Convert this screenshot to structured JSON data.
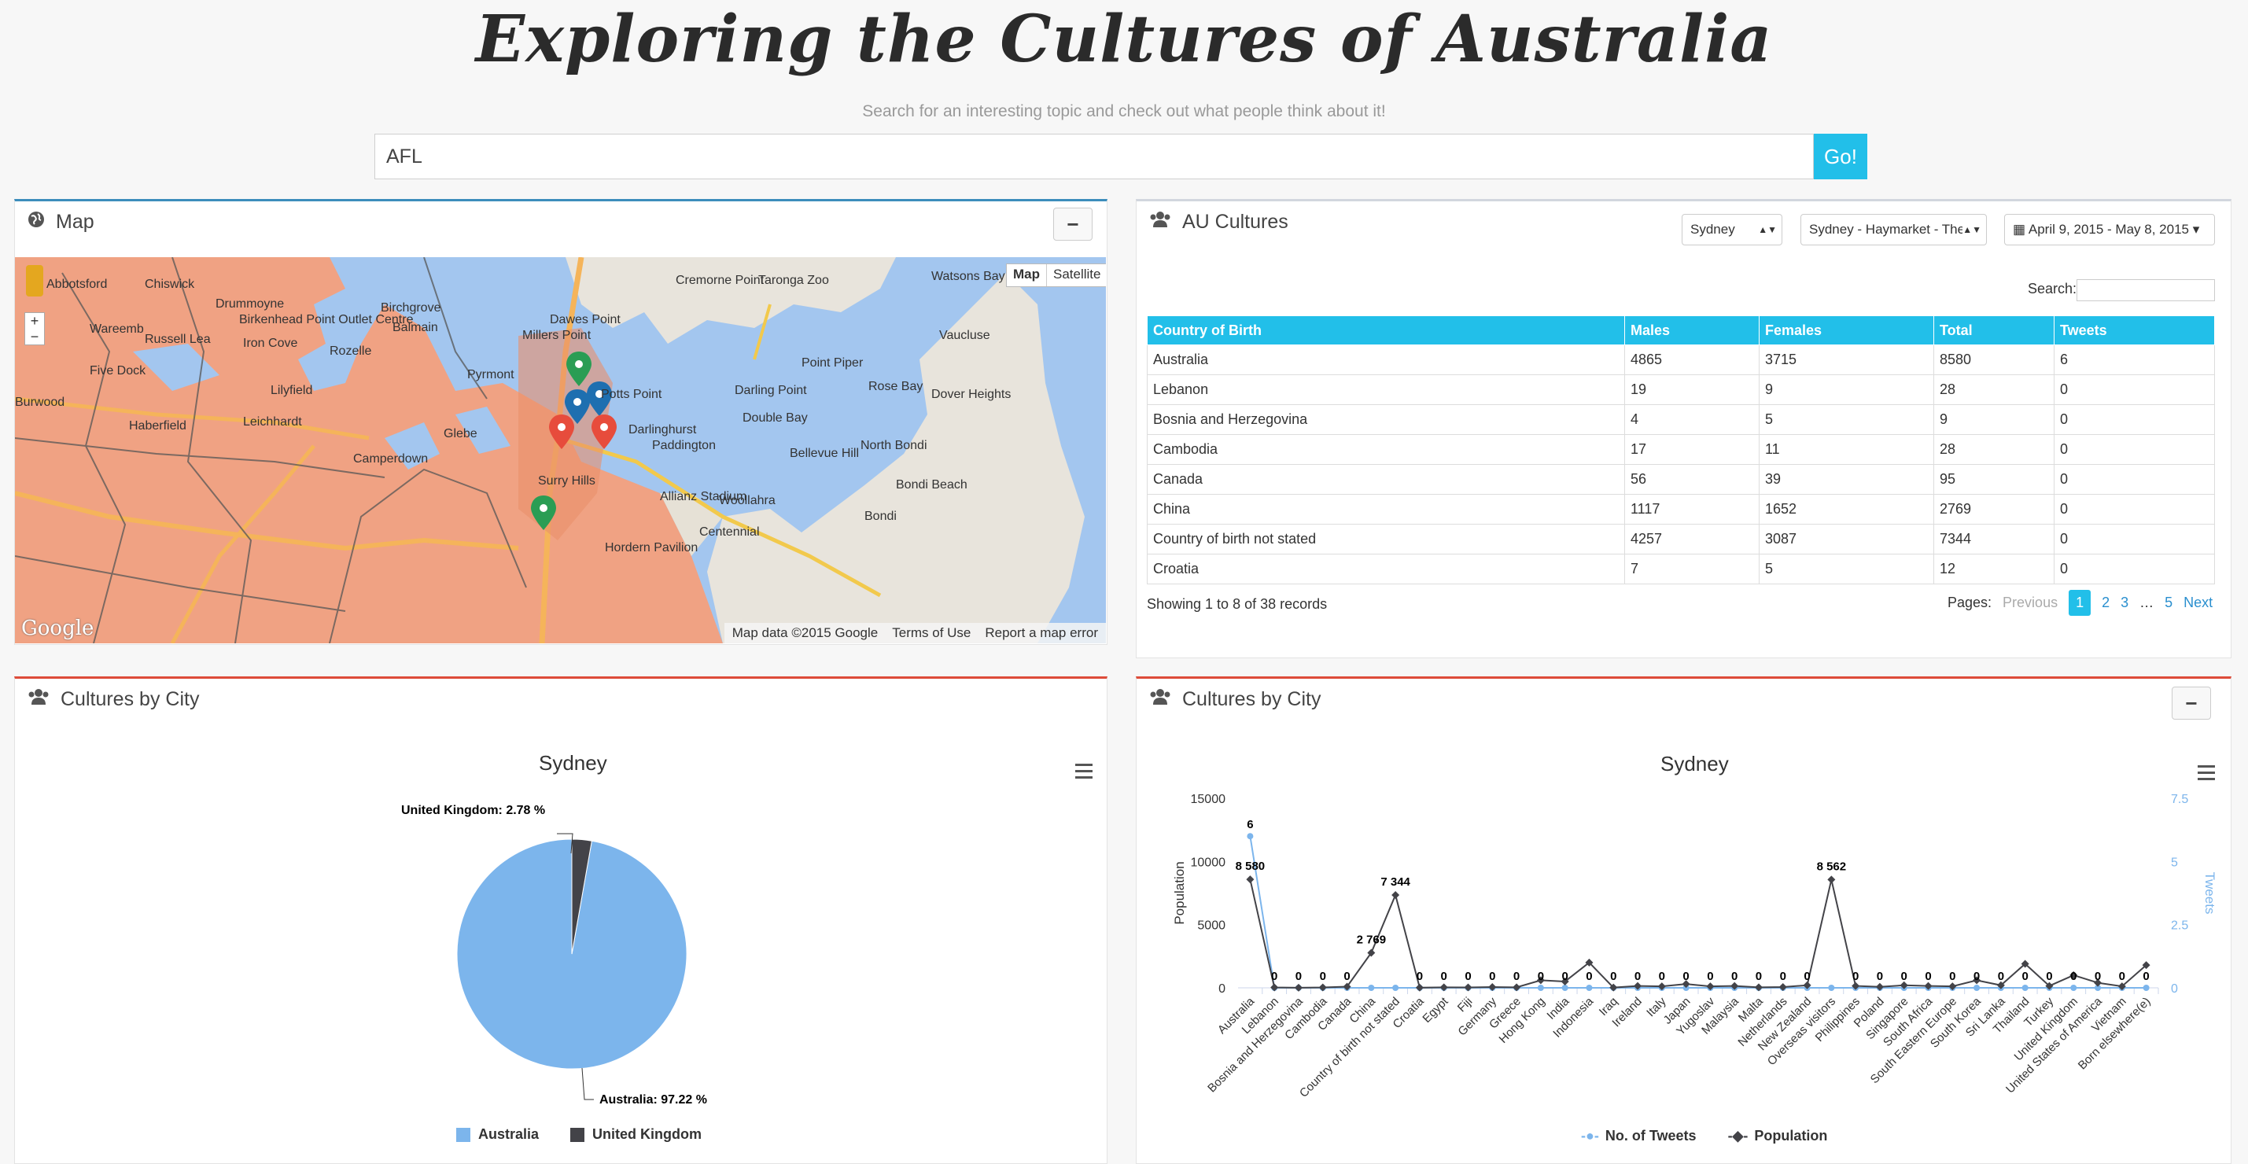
{
  "header": {
    "title": "Exploring the Cultures of Australia",
    "subtitle": "Search for an interesting topic and check out what people think about it!",
    "search_value": "AFL",
    "go_label": "Go!"
  },
  "map_panel": {
    "title": "Map",
    "collapse_label": "−",
    "toggle_map": "Map",
    "toggle_satellite": "Satellite",
    "attribution": "Map data ©2015 Google",
    "terms": "Terms of Use",
    "report": "Report a map error",
    "logo": "Google",
    "places": [
      "Abbotsford",
      "Chiswick",
      "Drummoyne",
      "Birkenhead Point Outlet Centre",
      "Wareemb",
      "Russell Lea",
      "Iron Cove",
      "Five Dock",
      "Rozelle",
      "Balmain",
      "Birchgrove",
      "Lilyfield",
      "Haberfield",
      "Leichhardt",
      "Glebe",
      "Pyrmont",
      "Dawes Point",
      "Millers Point",
      "Cremorne Point",
      "Taronga Zoo",
      "Vaucluse",
      "Point Piper",
      "Darling Point",
      "Rose Bay",
      "Dover Heights",
      "Double Bay",
      "Paddington",
      "Woollahra",
      "Bellevue Hill",
      "North Bondi",
      "Bondi Beach",
      "Bondi",
      "Surry Hills",
      "Potts Point",
      "Darlinghurst",
      "Centennial",
      "Allianz Stadium",
      "Camperdown",
      "Watsons Bay",
      "Burwood",
      "Hordern Pavilion"
    ]
  },
  "cultures_panel": {
    "title": "AU Cultures",
    "city_select": "Sydney",
    "area_select": "Sydney - Haymarket - The",
    "date_range": "April 9, 2015 - May 8, 2015",
    "search_label": "Search:",
    "columns": [
      "Country of Birth",
      "Males",
      "Females",
      "Total",
      "Tweets"
    ],
    "rows": [
      [
        "Australia",
        "4865",
        "3715",
        "8580",
        "6"
      ],
      [
        "Lebanon",
        "19",
        "9",
        "28",
        "0"
      ],
      [
        "Bosnia and Herzegovina",
        "4",
        "5",
        "9",
        "0"
      ],
      [
        "Cambodia",
        "17",
        "11",
        "28",
        "0"
      ],
      [
        "Canada",
        "56",
        "39",
        "95",
        "0"
      ],
      [
        "China",
        "1117",
        "1652",
        "2769",
        "0"
      ],
      [
        "Country of birth not stated",
        "4257",
        "3087",
        "7344",
        "0"
      ],
      [
        "Croatia",
        "7",
        "5",
        "12",
        "0"
      ]
    ],
    "records_text": "Showing 1 to 8 of 38 records",
    "pager": {
      "label": "Pages:",
      "previous": "Previous",
      "pages": [
        "1",
        "2",
        "3"
      ],
      "ellipsis": "…",
      "last": "5",
      "next": "Next"
    }
  },
  "pie_panel": {
    "title": "Cultures by City"
  },
  "line_panel": {
    "title": "Cultures by City",
    "collapse_label": "−"
  },
  "colors": {
    "accent": "#22bfe9",
    "pie_australia": "#7cb5ec",
    "pie_uk": "#434348",
    "tweets_line": "#7cb5ec",
    "population_line": "#434348"
  },
  "chart_data": [
    {
      "type": "pie",
      "title": "Sydney",
      "slices": [
        {
          "name": "Australia",
          "value": 97.22,
          "label": "Australia: 97.22 %"
        },
        {
          "name": "United Kingdom",
          "value": 2.78,
          "label": "United Kingdom: 2.78 %"
        }
      ],
      "legend": [
        "Australia",
        "United Kingdom"
      ],
      "legend_position": "bottom"
    },
    {
      "type": "line",
      "title": "Sydney",
      "ylabel": "Population",
      "y2label": "Tweets",
      "ylim": [
        0,
        15000
      ],
      "y2lim": [
        0,
        7.5
      ],
      "yticks": [
        "0",
        "5000",
        "10000",
        "15000"
      ],
      "y2ticks": [
        "0",
        "2.5",
        "5",
        "7.5"
      ],
      "categories": [
        "Australia",
        "Lebanon",
        "Bosnia and Herzegovina",
        "Cambodia",
        "Canada",
        "China",
        "Country of birth not stated",
        "Croatia",
        "Egypt",
        "Fiji",
        "Germany",
        "Greece",
        "Hong Kong",
        "India",
        "Indonesia",
        "Iraq",
        "Ireland",
        "Italy",
        "Japan",
        "Yugoslav",
        "Malaysia",
        "Malta",
        "Netherlands",
        "New Zealand",
        "Overseas visitors",
        "Philippines",
        "Poland",
        "Singapore",
        "South Africa",
        "South Eastern Europe",
        "South Korea",
        "Sri Lanka",
        "Thailand",
        "Turkey",
        "United Kingdom",
        "United States of America",
        "Vietnam",
        "Born elsewhere(e)"
      ],
      "series": [
        {
          "name": "No. of Tweets",
          "axis": "right",
          "values": [
            6,
            0,
            0,
            0,
            0,
            0,
            0,
            0,
            0,
            0,
            0,
            0,
            0,
            0,
            0,
            0,
            0,
            0,
            0,
            0,
            0,
            0,
            0,
            0,
            0,
            0,
            0,
            0,
            0,
            0,
            0,
            0,
            0,
            0,
            0,
            0,
            0,
            0
          ]
        },
        {
          "name": "Population",
          "axis": "left",
          "values": [
            8580,
            28,
            9,
            28,
            95,
            2769,
            7344,
            12,
            40,
            30,
            60,
            40,
            600,
            500,
            2000,
            20,
            150,
            120,
            300,
            120,
            150,
            40,
            60,
            200,
            8562,
            150,
            80,
            200,
            150,
            120,
            600,
            200,
            1900,
            150,
            1000,
            400,
            120,
            1800
          ]
        }
      ],
      "data_labels_population": {
        "0": "8 580",
        "5": "2 769",
        "6": "7 344",
        "24": "8 562"
      },
      "data_labels_tweets": {
        "0": "6"
      },
      "zero_label": "0",
      "legend": [
        "No. of Tweets",
        "Population"
      ],
      "legend_position": "bottom"
    }
  ]
}
